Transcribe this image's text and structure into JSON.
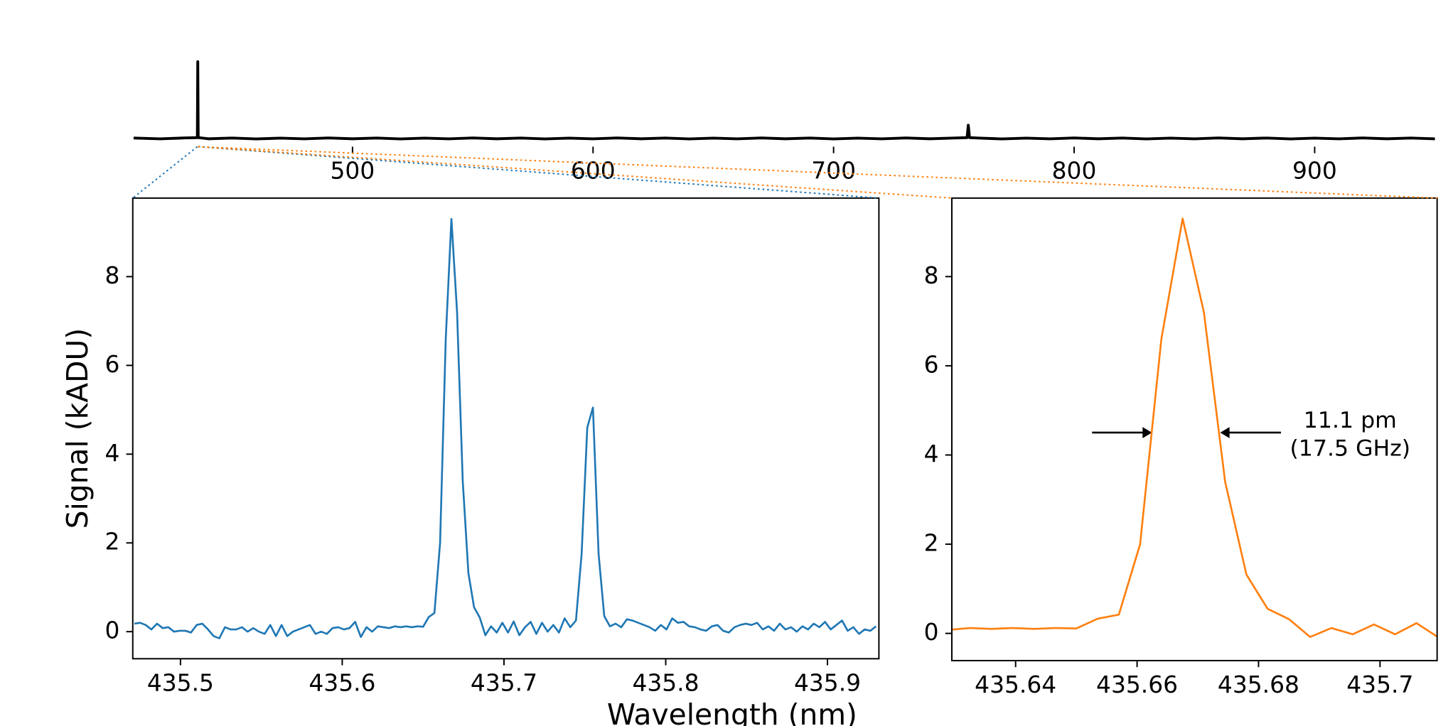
{
  "chart_data": [
    {
      "type": "line",
      "color": "#000000",
      "x": [
        409,
        420,
        430,
        435.5,
        435.67,
        435.85,
        440,
        450,
        460,
        470,
        480,
        490,
        500,
        510,
        520,
        530,
        540,
        550,
        560,
        570,
        580,
        590,
        600,
        610,
        620,
        630,
        640,
        650,
        660,
        670,
        680,
        690,
        700,
        710,
        720,
        730,
        740,
        750,
        755.5,
        756,
        756.5,
        760,
        770,
        780,
        790,
        800,
        810,
        820,
        830,
        840,
        850,
        860,
        870,
        880,
        890,
        900,
        910,
        920,
        930,
        940,
        950
      ],
      "values": [
        0.05,
        -0.05,
        0.06,
        0.1,
        9.3,
        0.1,
        -0.04,
        0.05,
        -0.06,
        0.04,
        -0.05,
        0.06,
        -0.04,
        0.05,
        -0.06,
        0.04,
        -0.05,
        0.06,
        -0.04,
        0.05,
        -0.06,
        0.04,
        -0.05,
        0.06,
        -0.04,
        0.05,
        -0.06,
        0.04,
        -0.05,
        0.06,
        -0.04,
        0.05,
        -0.06,
        0.04,
        -0.05,
        0.06,
        -0.04,
        0.05,
        0.1,
        1.6,
        0.1,
        0.05,
        -0.06,
        0.04,
        -0.05,
        0.06,
        -0.04,
        0.05,
        -0.06,
        0.04,
        -0.05,
        0.06,
        -0.04,
        0.05,
        -0.06,
        0.04,
        -0.05,
        0.06,
        -0.04,
        0.05,
        -0.05
      ],
      "xlim": [
        408.65,
        950.9
      ],
      "ylim": [
        -1,
        9.3
      ],
      "xticks": [
        500,
        600,
        700,
        800,
        900
      ]
    },
    {
      "type": "line",
      "color": "#1f77b4",
      "xlabel": "Wavelength (nm)",
      "ylabel": "Signal (kADU)",
      "x": [
        435.4715,
        435.475,
        435.4785,
        435.482,
        435.4855,
        435.489,
        435.4925,
        435.496,
        435.4995,
        435.503,
        435.5065,
        435.51,
        435.5135,
        435.517,
        435.5205,
        435.524,
        435.5275,
        435.531,
        435.5345,
        435.538,
        435.5415,
        435.545,
        435.5485,
        435.552,
        435.5555,
        435.559,
        435.5625,
        435.566,
        435.5695,
        435.573,
        435.5765,
        435.58,
        435.5835,
        435.587,
        435.5905,
        435.594,
        435.5975,
        435.601,
        435.6045,
        435.608,
        435.6115,
        435.615,
        435.6185,
        435.622,
        435.6255,
        435.629,
        435.6325,
        435.636,
        435.6395,
        435.643,
        435.6465,
        435.65,
        435.6535,
        435.657,
        435.6605,
        435.664,
        435.6675,
        435.671,
        435.6745,
        435.678,
        435.6815,
        435.685,
        435.6885,
        435.692,
        435.6955,
        435.699,
        435.7025,
        435.706,
        435.7095,
        435.713,
        435.7165,
        435.72,
        435.7235,
        435.727,
        435.7305,
        435.734,
        435.7375,
        435.741,
        435.7445,
        435.748,
        435.7515,
        435.755,
        435.7585,
        435.762,
        435.7655,
        435.769,
        435.7725,
        435.776,
        435.7795,
        435.783,
        435.7865,
        435.79,
        435.7935,
        435.797,
        435.8005,
        435.804,
        435.8075,
        435.811,
        435.8145,
        435.818,
        435.8215,
        435.825,
        435.8285,
        435.832,
        435.8355,
        435.839,
        435.8425,
        435.846,
        435.8495,
        435.853,
        435.8565,
        435.86,
        435.8635,
        435.867,
        435.8705,
        435.874,
        435.8775,
        435.881,
        435.8845,
        435.888,
        435.8915,
        435.895,
        435.8985,
        435.902,
        435.9055,
        435.909,
        435.9125,
        435.916,
        435.9195,
        435.923,
        435.9265,
        435.93
      ],
      "values": [
        0.18,
        0.2,
        0.15,
        0.05,
        0.18,
        0.08,
        0.1,
        0,
        0.02,
        0.02,
        -0.02,
        0.15,
        0.18,
        0.05,
        -0.1,
        -0.15,
        0.1,
        0.05,
        0.05,
        0.1,
        0,
        0.08,
        0,
        -0.05,
        0.15,
        -0.1,
        0.15,
        -0.1,
        0,
        0.05,
        0.1,
        0.15,
        -0.05,
        0,
        -0.05,
        0.08,
        0.1,
        0.05,
        0.08,
        0.22,
        -0.12,
        0.1,
        0,
        0.12,
        0.1,
        0.08,
        0.12,
        0.1,
        0.12,
        0.1,
        0.12,
        0.11,
        0.33,
        0.42,
        2.0,
        6.6,
        9.3,
        7.2,
        3.4,
        1.32,
        0.55,
        0.32,
        -0.08,
        0.12,
        -0.02,
        0.2,
        -0.02,
        0.23,
        -0.08,
        0.1,
        0.22,
        -0.05,
        0.2,
        0,
        0.15,
        -0.02,
        0.3,
        0.1,
        0.25,
        1.75,
        4.6,
        5.05,
        1.75,
        0.35,
        0.12,
        0.18,
        0.1,
        0.28,
        0.25,
        0.2,
        0.15,
        0.1,
        0.02,
        0.15,
        0.05,
        0.3,
        0.2,
        0.22,
        0.12,
        0.1,
        0.05,
        0.02,
        0.12,
        0.15,
        0.02,
        -0.02,
        0.1,
        0.15,
        0.18,
        0.15,
        0.2,
        0.05,
        0.12,
        0.02,
        0.18,
        0.05,
        0.1,
        0,
        0.12,
        0.05,
        0.18,
        0.1,
        0.22,
        0.05,
        0.15,
        0.25,
        0.02,
        0.1,
        -0.05,
        0.05,
        0.02,
        0.12
      ],
      "xlim": [
        435.4705,
        435.9318
      ],
      "ylim": [
        -0.61,
        9.77
      ],
      "xticks": [
        435.5,
        435.6,
        435.7,
        435.8,
        435.9
      ],
      "yticks": [
        0,
        2,
        4,
        6,
        8
      ]
    },
    {
      "type": "line",
      "color": "#ff7f0e",
      "annotations": [
        "11.1 pm",
        "(17.5 GHz)"
      ],
      "x": [
        435.629,
        435.6325,
        435.636,
        435.6395,
        435.643,
        435.6465,
        435.65,
        435.6535,
        435.657,
        435.6605,
        435.664,
        435.6675,
        435.671,
        435.6745,
        435.678,
        435.6815,
        435.685,
        435.6885,
        435.692,
        435.6955,
        435.699,
        435.7025,
        435.706,
        435.7095
      ],
      "values": [
        0.08,
        0.12,
        0.1,
        0.12,
        0.1,
        0.12,
        0.11,
        0.33,
        0.42,
        2.0,
        6.6,
        9.3,
        7.2,
        3.4,
        1.32,
        0.55,
        0.32,
        -0.08,
        0.12,
        -0.02,
        0.2,
        -0.02,
        0.23,
        -0.08
      ],
      "xlim": [
        435.6295,
        435.7094
      ],
      "ylim": [
        -0.61,
        9.76
      ],
      "xticks": [
        435.64,
        435.66,
        435.68,
        435.7
      ],
      "yticks": [
        0,
        2,
        4,
        6,
        8
      ]
    }
  ]
}
